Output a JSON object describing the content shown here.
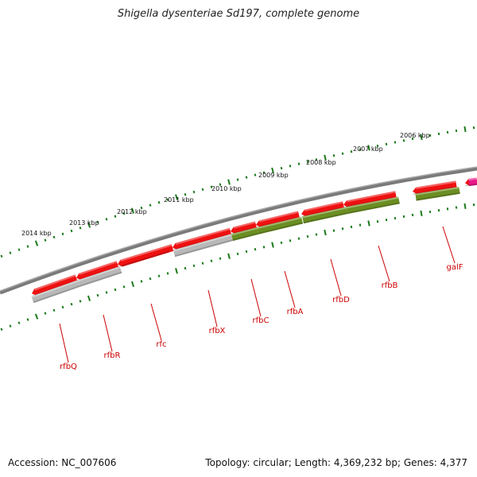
{
  "title": "Shigella dysenteriae Sd197, complete genome",
  "footer": {
    "accession": "Accession: NC_007606",
    "summary": "Topology: circular; Length: 4,369,232 bp; Genes: 4,377"
  },
  "colors": {
    "backbone": "#7a7a7a",
    "tick": "#1a7a1a",
    "gene_red": "#ee1111",
    "gene_gray": "#b8b8b8",
    "gene_green": "#6b8e23",
    "gene_magenta": "#e8178a",
    "label": "#cc0000"
  },
  "kbp_labels": [
    "2014 kbp",
    "2013 kbp",
    "2012 kbp",
    "2011 kbp",
    "2010 kbp",
    "2009 kbp",
    "2008 kbp",
    "2007 kbp",
    "2006 kbp"
  ],
  "gene_labels": [
    "rfbQ",
    "rfbR",
    "rfc",
    "rfbX",
    "rfbC",
    "rfbA",
    "rfbD",
    "rfbB",
    "galF"
  ]
}
